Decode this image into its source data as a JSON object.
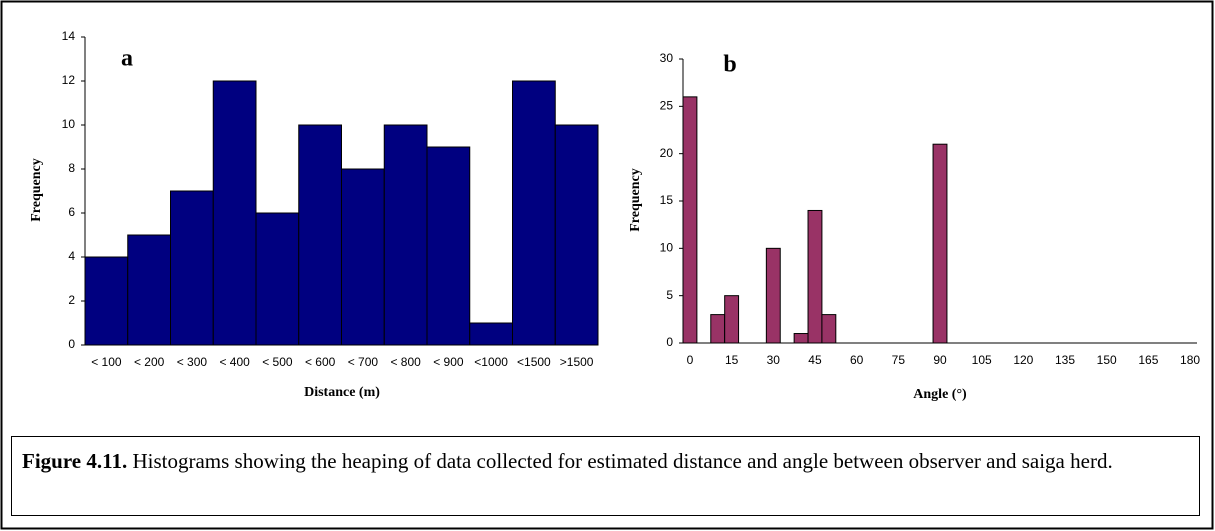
{
  "chart_data": [
    {
      "type": "bar",
      "annotation": "a",
      "x_label": "Distance (m)",
      "y_label": "Frequency",
      "categories": [
        "< 100",
        "< 200",
        "< 300",
        "< 400",
        "< 500",
        "< 600",
        "< 700",
        "< 800",
        "< 900",
        "<1000",
        "<1500",
        ">1500"
      ],
      "values": [
        4,
        5,
        7,
        12,
        6,
        10,
        8,
        10,
        9,
        1,
        12,
        10
      ],
      "color": "#000080",
      "ylim": [
        0,
        14
      ],
      "yticks": [
        0,
        2,
        4,
        6,
        8,
        10,
        12,
        14
      ],
      "grid": false
    },
    {
      "type": "bar",
      "annotation": "b",
      "x_label": "Angle (°)",
      "y_label": "Frequency",
      "categories": [
        0,
        null,
        null,
        15,
        null,
        null,
        30,
        null,
        null,
        45,
        null,
        null,
        60,
        null,
        null,
        75,
        null,
        null,
        90,
        null,
        null,
        105,
        null,
        null,
        120,
        null,
        null,
        135,
        null,
        null,
        150,
        null,
        null,
        165,
        null,
        null,
        180
      ],
      "values": [
        26,
        0,
        3,
        5,
        0,
        0,
        10,
        0,
        1,
        14,
        3,
        0,
        0,
        0,
        0,
        0,
        0,
        0,
        21,
        0,
        0,
        0,
        0,
        0,
        0,
        0,
        0,
        0,
        0,
        0,
        0,
        0,
        0,
        0,
        0,
        0,
        0
      ],
      "color": "#993366",
      "ylim": [
        0,
        30
      ],
      "yticks": [
        0,
        5,
        10,
        15,
        20,
        25,
        30
      ],
      "grid": false
    }
  ],
  "caption": {
    "label": "Figure 4.11.",
    "text": " Histograms showing the heaping of data collected for estimated distance and angle between observer and saiga herd."
  }
}
